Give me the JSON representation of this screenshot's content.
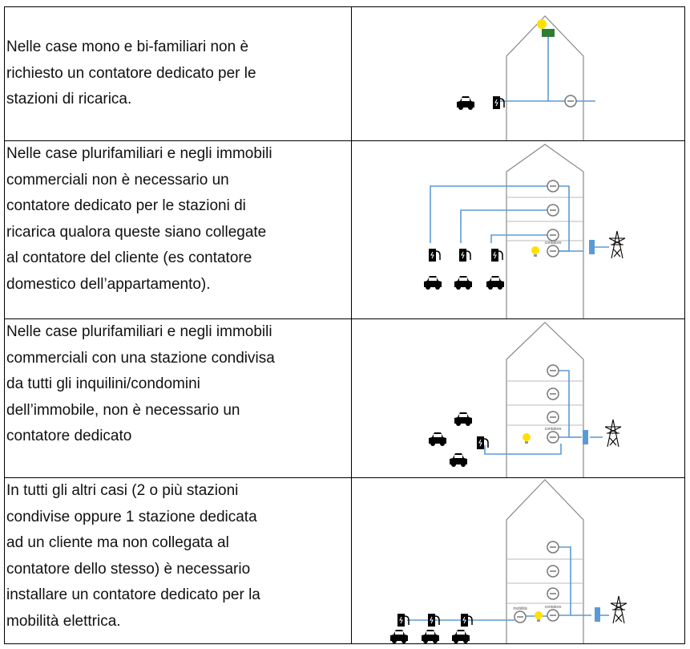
{
  "rows": [
    {
      "lines": [
        "Nelle case mono e bi-familiari non è",
        "richiesto un contatore dedicato per le",
        "stazioni di ricarica."
      ]
    },
    {
      "lines": [
        "Nelle case plurifamiliari e negli immobili",
        "commerciali non è necessario un",
        "contatore dedicato per le stazioni di",
        "ricarica qualora queste siano collegate",
        "al contatore del cliente (es contatore",
        "domestico dell’appartamento)."
      ],
      "meter_label": "contatore"
    },
    {
      "lines": [
        "Nelle case plurifamiliari e negli immobili",
        "commerciali con una stazione condivisa",
        "da tutti gli inquilini/condomini",
        "dell’immobile, non è necessario un",
        "contatore dedicato"
      ],
      "meter_label": "contatore"
    },
    {
      "lines": [
        "In tutti gli altri casi (2 o più stazioni",
        "condivise oppure 1 stazione dedicata",
        "ad un cliente ma non collegata al",
        "contatore dello stesso) è necessario",
        "installare un contatore dedicato per la",
        "mobilità elettrica."
      ],
      "meter_label": "contatore",
      "mobility_label": "mobilità"
    }
  ]
}
